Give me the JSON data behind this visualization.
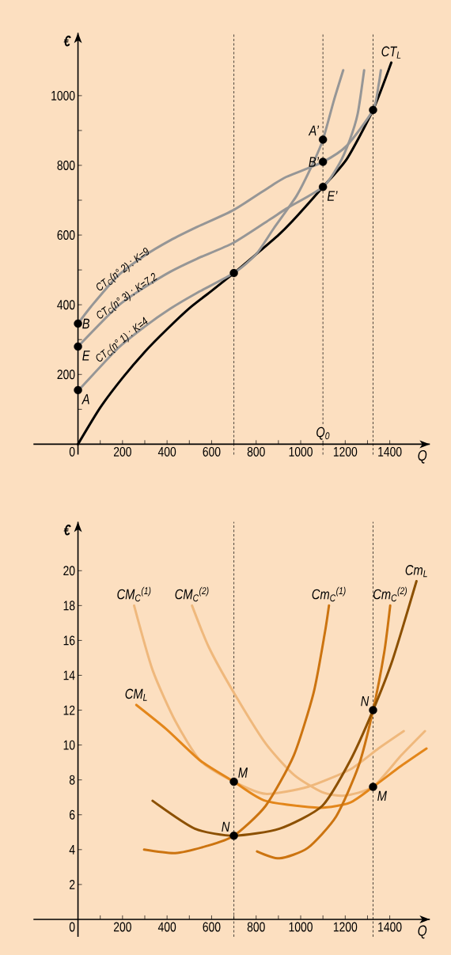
{
  "chart_data": [
    {
      "type": "line",
      "xlabel": "Q",
      "ylabel": "€",
      "xlim": [
        -200,
        1580
      ],
      "ylim": [
        -30,
        1180
      ],
      "xticks": [
        {
          "value": 0,
          "label": "0"
        },
        {
          "value": 100,
          "label": null
        },
        200,
        {
          "value": 300,
          "label": null
        },
        400,
        {
          "value": 500,
          "label": null
        },
        600,
        {
          "value": 700,
          "label": null
        },
        800,
        {
          "value": 900,
          "label": null
        },
        1000,
        {
          "value": 1100,
          "label": null
        },
        1200,
        {
          "value": 1300,
          "label": null
        },
        1400
      ],
      "yticks": [
        {
          "value": 100,
          "label": null
        },
        200,
        {
          "value": 300,
          "label": null
        },
        400,
        {
          "value": 500,
          "label": null
        },
        600,
        {
          "value": 700,
          "label": null
        },
        800,
        {
          "value": 900,
          "label": null
        },
        1000
      ],
      "series": [
        {
          "name": "CT$_{L}$",
          "color": "#000000",
          "x": [
            0,
            100,
            200,
            300,
            400,
            500,
            600,
            700,
            800,
            900,
            960,
            1100,
            1208,
            1325,
            1407
          ],
          "values": [
            0,
            105,
            190,
            265,
            330,
            390,
            440,
            491,
            545,
            600,
            638,
            738,
            819,
            959,
            1095
          ]
        },
        {
          "name": "CT$_{C}$(n° 1) : K=4",
          "color": "#969696",
          "x": [
            0,
            13,
            179,
            297,
            415,
            534,
            700,
            800,
            880,
            983,
            1054,
            1100,
            1149,
            1191
          ],
          "values": [
            155,
            162,
            275,
            336,
            389,
            434,
            491,
            545,
            620,
            714,
            804,
            874,
            986,
            1073
          ]
        },
        {
          "name": "CT$_{C}$(n° 3) : K=7,2",
          "color": "#969696",
          "x": [
            0,
            179,
            297,
            415,
            534,
            699,
            865,
            936,
            1100,
            1173,
            1220,
            1256,
            1285
          ],
          "values": [
            280,
            396,
            449,
            495,
            532,
            578,
            646,
            676,
            738,
            804,
            872,
            948,
            1073
          ]
        },
        {
          "name": "CT$_{C}$(n° 2) : K=9",
          "color": "#969696",
          "x": [
            0,
            60,
            179,
            297,
            415,
            534,
            699,
            865,
            936,
            1100,
            1208,
            1325,
            1350,
            1360
          ],
          "values": [
            346,
            396,
            483,
            540,
            585,
            623,
            672,
            740,
            767,
            810,
            857,
            959,
            1031,
            1073
          ]
        },
        {
          "type": "scatter",
          "color": "#000000",
          "marker": "circle",
          "x": [
            0,
            0,
            0,
            1100,
            1100,
            1100,
            700,
            1325
          ],
          "values": [
            155,
            346,
            280,
            874,
            810,
            738,
            491,
            959
          ]
        }
      ],
      "ref_lines": [
        {
          "axis": "x",
          "value": 700,
          "line_style": "dashed"
        },
        {
          "axis": "x",
          "value": 1100,
          "line_style": "dashed",
          "label": "Q$_{0}$"
        },
        {
          "axis": "x",
          "value": 1325,
          "line_style": "dashed"
        }
      ],
      "annotations": [
        {
          "text": "A",
          "x": 0,
          "y": 155
        },
        {
          "text": "B",
          "x": 0,
          "y": 346
        },
        {
          "text": "E",
          "x": 0,
          "y": 280
        },
        {
          "text": "A’",
          "x": 1100,
          "y": 874
        },
        {
          "text": "B’",
          "x": 1100,
          "y": 810
        },
        {
          "text": "E’",
          "x": 1100,
          "y": 738
        }
      ]
    },
    {
      "type": "line",
      "xlabel": "Q",
      "ylabel": "€",
      "xlim": [
        -200,
        1580
      ],
      "ylim": [
        -1,
        22.8
      ],
      "xticks": [
        {
          "value": 0,
          "label": "0"
        },
        {
          "value": 100,
          "label": null
        },
        200,
        {
          "value": 300,
          "label": null
        },
        400,
        {
          "value": 500,
          "label": null
        },
        600,
        {
          "value": 700,
          "label": null
        },
        800,
        {
          "value": 900,
          "label": null
        },
        1000,
        {
          "value": 1100,
          "label": null
        },
        1200,
        {
          "value": 1300,
          "label": null
        },
        1400
      ],
      "yticks": [
        2,
        4,
        6,
        8,
        10,
        12,
        14,
        16,
        18,
        20
      ],
      "series": [
        {
          "name": "CM$_{C}$$^{(1)}$",
          "color": "#efb87c",
          "x": [
            252,
            335,
            436,
            550,
            700,
            842,
            1032,
            1222,
            1349,
            1463
          ],
          "values": [
            18.0,
            14.3,
            11.4,
            9.1,
            7.9,
            7.2,
            7.6,
            8.6,
            9.8,
            10.8
          ]
        },
        {
          "name": "CM$_{C}$$^{(2)}$",
          "color": "#efb87c",
          "x": [
            512,
            588,
            700,
            842,
            969,
            1096,
            1197,
            1325,
            1451,
            1558
          ],
          "values": [
            18.0,
            15.6,
            13.0,
            10.1,
            8.3,
            7.3,
            7.1,
            7.6,
            9.4,
            10.8
          ]
        },
        {
          "name": "CM$_{L}$",
          "color": "#e3861a",
          "x": [
            262,
            398,
            550,
            700,
            842,
            1083,
            1222,
            1325,
            1451,
            1565
          ],
          "values": [
            12.3,
            10.9,
            9.1,
            7.9,
            6.8,
            6.4,
            6.7,
            7.6,
            8.8,
            9.8
          ]
        },
        {
          "name": "Cm$_{C}$$^{(1)}$",
          "color": "#cc7410",
          "x": [
            297,
            436,
            576,
            700,
            842,
            969,
            1058,
            1108,
            1127
          ],
          "values": [
            4.0,
            3.8,
            4.2,
            4.8,
            6.5,
            9.4,
            13.0,
            16.4,
            18.0
          ]
        },
        {
          "name": "Cm$_{C}$$^{(2)}$",
          "color": "#cc7410",
          "x": [
            804,
            905,
            1032,
            1159,
            1260,
            1325,
            1375,
            1402
          ],
          "values": [
            3.9,
            3.5,
            4.1,
            5.9,
            8.8,
            12.0,
            15.3,
            18.0
          ]
        },
        {
          "name": "Cm$_{L}$",
          "color": "#8c5000",
          "x": [
            335,
            525,
            700,
            905,
            1096,
            1222,
            1325,
            1413,
            1520
          ],
          "values": [
            6.8,
            5.2,
            4.8,
            5.2,
            6.5,
            9.1,
            12.0,
            14.9,
            19.4
          ]
        },
        {
          "type": "scatter",
          "color": "#000000",
          "marker": "circle",
          "x": [
            700,
            700,
            1325,
            1325
          ],
          "values": [
            7.9,
            4.8,
            12.0,
            7.6
          ]
        }
      ],
      "ref_lines": [
        {
          "axis": "x",
          "value": 700,
          "line_style": "dashed"
        },
        {
          "axis": "x",
          "value": 1325,
          "line_style": "dashed"
        }
      ],
      "annotations": [
        {
          "text": "M",
          "x": 700,
          "y": 7.9
        },
        {
          "text": "N",
          "x": 700,
          "y": 4.8
        },
        {
          "text": "N",
          "x": 1325,
          "y": 12.0
        },
        {
          "text": "M",
          "x": 1325,
          "y": 7.6
        }
      ]
    }
  ]
}
